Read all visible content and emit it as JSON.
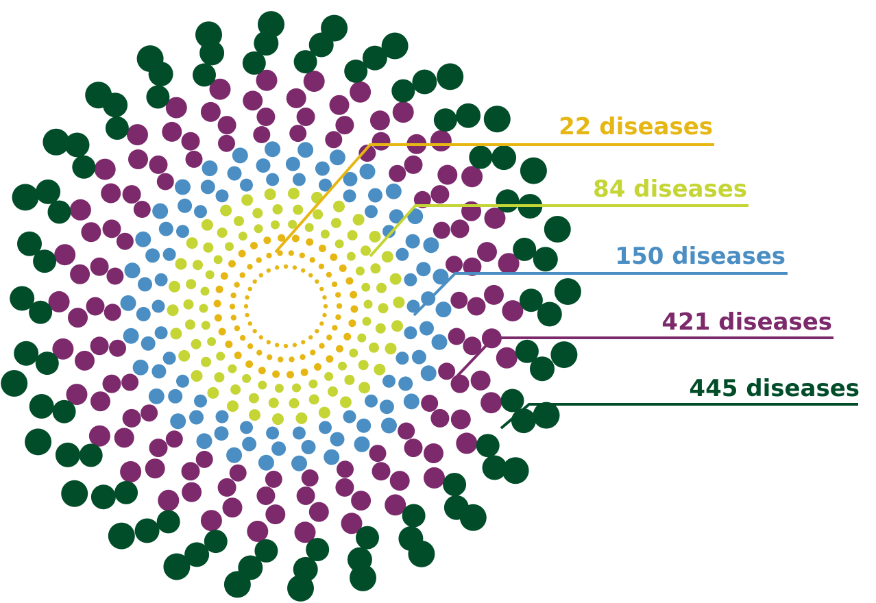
{
  "rings": [
    {
      "label": "22 diseases",
      "color": "#e6b714"
    },
    {
      "label": "84 diseases",
      "color": "#c4d535"
    },
    {
      "label": "150 diseases",
      "color": "#4a8ec3"
    },
    {
      "label": "421 diseases",
      "color": "#7c2a6c"
    },
    {
      "label": "445 diseases",
      "color": "#014d29"
    }
  ]
}
